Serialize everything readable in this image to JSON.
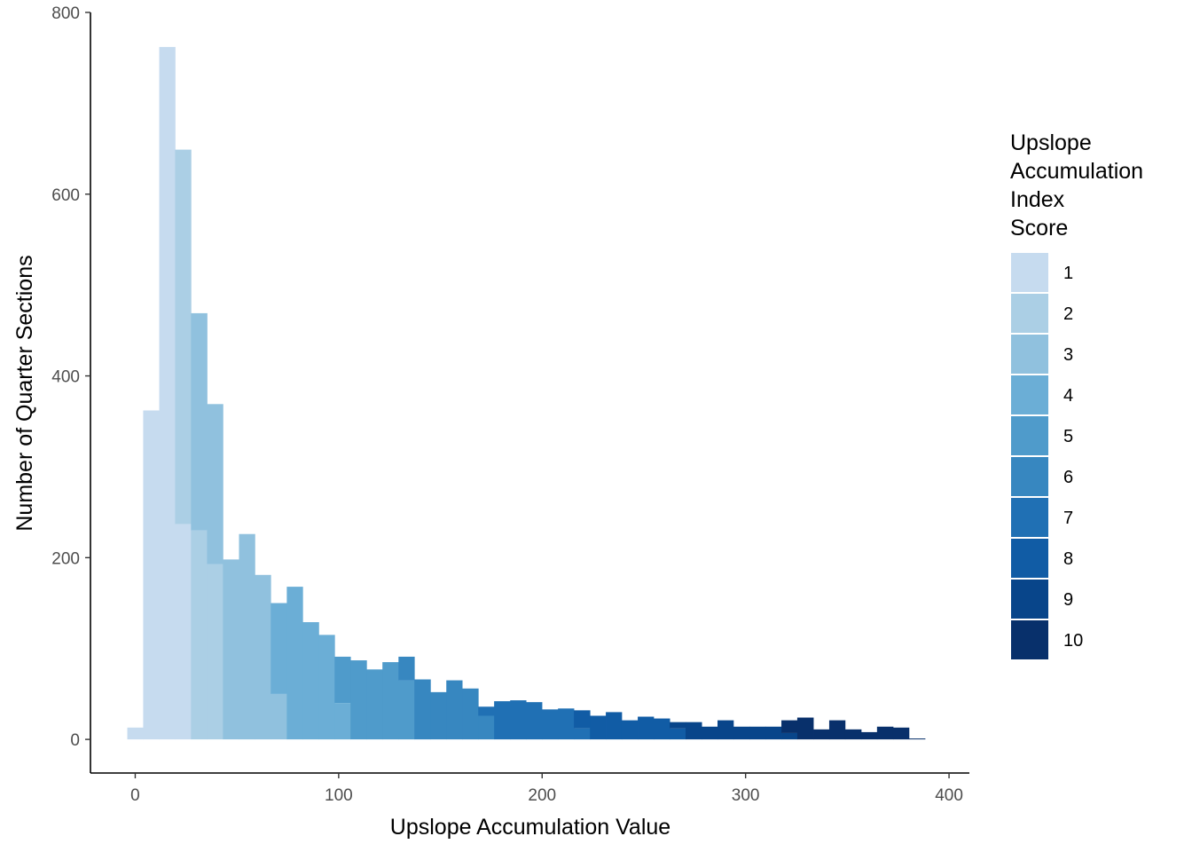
{
  "chart_data": {
    "type": "bar",
    "title": "",
    "xlabel": "Upslope Accumulation Value",
    "ylabel": "Number of Quarter Sections",
    "xlim": [
      -22,
      410
    ],
    "ylim": [
      -37,
      800
    ],
    "x_ticks": [
      0,
      100,
      200,
      300,
      400
    ],
    "y_ticks": [
      0,
      200,
      400,
      600,
      800
    ],
    "grid": false,
    "legend_position": "right",
    "bin_width": 7.83,
    "legend": {
      "title_lines": [
        "Upslope",
        "Accumulation",
        "Index",
        "Score"
      ],
      "items": [
        {
          "label": "1",
          "color": "#c6dbef"
        },
        {
          "label": "2",
          "color": "#abcfe5"
        },
        {
          "label": "3",
          "color": "#90c1de"
        },
        {
          "label": "4",
          "color": "#6baed6"
        },
        {
          "label": "5",
          "color": "#4f9bcb"
        },
        {
          "label": "6",
          "color": "#3787c0"
        },
        {
          "label": "7",
          "color": "#2070b4"
        },
        {
          "label": "8",
          "color": "#115ca5"
        },
        {
          "label": "9",
          "color": "#08458a"
        },
        {
          "label": "10",
          "color": "#08306b"
        }
      ]
    },
    "series": [
      {
        "name": "1",
        "bins": [
          [
            -3.9,
            3.9,
            13
          ],
          [
            3.9,
            11.8,
            362
          ],
          [
            11.8,
            19.6,
            762
          ],
          [
            19.6,
            27.4,
            237
          ]
        ]
      },
      {
        "name": "2",
        "bins": [
          [
            19.6,
            27.4,
            412
          ],
          [
            27.4,
            35.3,
            230
          ],
          [
            35.3,
            43.1,
            193
          ]
        ]
      },
      {
        "name": "3",
        "bins": [
          [
            27.4,
            35.3,
            239
          ],
          [
            35.3,
            43.1,
            176
          ],
          [
            43.1,
            51.0,
            198
          ],
          [
            51.0,
            58.8,
            226
          ],
          [
            58.8,
            66.6,
            181
          ],
          [
            66.6,
            74.5,
            50
          ]
        ]
      },
      {
        "name": "4",
        "bins": [
          [
            66.6,
            74.5,
            100
          ],
          [
            74.5,
            82.3,
            168
          ],
          [
            82.3,
            90.2,
            129
          ],
          [
            90.2,
            98.0,
            115
          ],
          [
            98.0,
            105.8,
            40
          ]
        ]
      },
      {
        "name": "5",
        "bins": [
          [
            98.0,
            105.8,
            51
          ],
          [
            105.8,
            113.7,
            87
          ],
          [
            113.7,
            121.5,
            77
          ],
          [
            121.5,
            129.4,
            85
          ],
          [
            129.4,
            137.2,
            65
          ]
        ]
      },
      {
        "name": "6",
        "bins": [
          [
            129.4,
            137.2,
            26
          ],
          [
            137.2,
            145.1,
            66
          ],
          [
            145.1,
            152.9,
            52
          ],
          [
            152.9,
            160.7,
            65
          ],
          [
            160.7,
            168.6,
            56
          ],
          [
            168.6,
            176.4,
            26
          ]
        ]
      },
      {
        "name": "7",
        "bins": [
          [
            168.6,
            176.4,
            10
          ],
          [
            176.4,
            184.3,
            42
          ],
          [
            184.3,
            192.1,
            43
          ],
          [
            192.1,
            199.9,
            41
          ],
          [
            199.9,
            207.8,
            33
          ],
          [
            207.8,
            215.6,
            34
          ],
          [
            215.6,
            223.5,
            12
          ]
        ]
      },
      {
        "name": "8",
        "bins": [
          [
            215.6,
            223.5,
            20
          ],
          [
            223.5,
            231.3,
            26
          ],
          [
            231.3,
            239.1,
            30
          ],
          [
            239.1,
            247.0,
            21
          ],
          [
            247.0,
            254.8,
            25
          ],
          [
            254.8,
            262.7,
            23
          ],
          [
            262.7,
            270.5,
            12
          ]
        ]
      },
      {
        "name": "9",
        "bins": [
          [
            262.7,
            270.5,
            7
          ],
          [
            270.5,
            278.4,
            19
          ],
          [
            278.4,
            286.2,
            14
          ],
          [
            286.2,
            294.0,
            21
          ],
          [
            294.0,
            301.9,
            14
          ],
          [
            301.9,
            309.7,
            14
          ],
          [
            309.7,
            317.6,
            14
          ],
          [
            317.6,
            325.4,
            7
          ]
        ]
      },
      {
        "name": "10",
        "bins": [
          [
            317.6,
            325.4,
            14
          ],
          [
            325.4,
            333.3,
            24
          ],
          [
            333.3,
            341.1,
            11
          ],
          [
            341.1,
            348.9,
            21
          ],
          [
            348.9,
            356.8,
            11
          ],
          [
            356.8,
            364.6,
            8
          ],
          [
            364.6,
            372.5,
            14
          ],
          [
            372.5,
            380.3,
            13
          ],
          [
            380.3,
            388.2,
            1
          ]
        ]
      }
    ]
  }
}
